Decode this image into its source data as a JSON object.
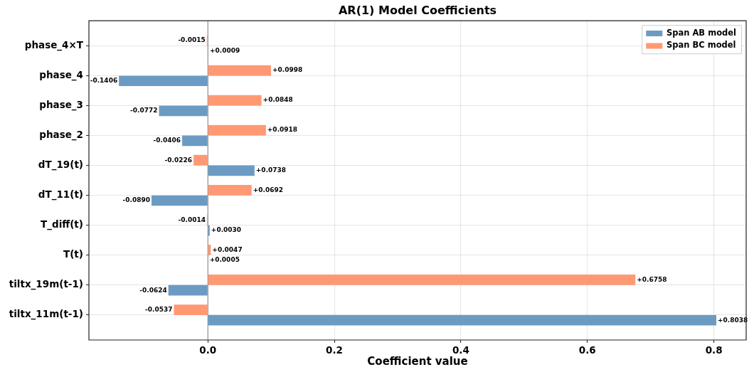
{
  "chart_data": {
    "type": "bar",
    "orientation": "horizontal",
    "title": "AR(1) Model Coefficients",
    "xlabel": "Coefficient value",
    "categories": [
      "phase_4×T",
      "phase_4",
      "phase_3",
      "phase_2",
      "dT_19(t)",
      "dT_11(t)",
      "T_diff(t)",
      "T(t)",
      "tiltx_19m(t-1)",
      "tiltx_11m(t-1)"
    ],
    "series": [
      {
        "name": "Span AB model",
        "color": "#6b9bc3",
        "values": [
          0.0009,
          -0.1406,
          -0.0772,
          -0.0406,
          0.0738,
          -0.089,
          0.003,
          0.0005,
          -0.0624,
          0.8038
        ],
        "value_labels": [
          "+0.0009",
          "-0.1406",
          "-0.0772",
          "-0.0406",
          "+0.0738",
          "-0.0890",
          "+0.0030",
          "+0.0005",
          "-0.0624",
          "+0.8038"
        ]
      },
      {
        "name": "Span BC model",
        "color": "#ff9973",
        "values": [
          -0.0015,
          0.0998,
          0.0848,
          0.0918,
          -0.0226,
          0.0692,
          -0.0014,
          0.0047,
          0.6758,
          -0.0537
        ],
        "value_labels": [
          "-0.0015",
          "+0.0998",
          "+0.0848",
          "+0.0918",
          "-0.0226",
          "+0.0692",
          "-0.0014",
          "+0.0047",
          "+0.6758",
          "-0.0537"
        ]
      }
    ],
    "xlim": [
      -0.188,
      0.851
    ],
    "xticks": [
      {
        "value": 0,
        "label": "0.0"
      },
      0.2,
      0.4,
      0.6,
      0.8
    ],
    "grid": true,
    "legend": "top right",
    "ref_lines": [
      {
        "axis": "x",
        "value": 0,
        "color": "#808080"
      }
    ]
  }
}
